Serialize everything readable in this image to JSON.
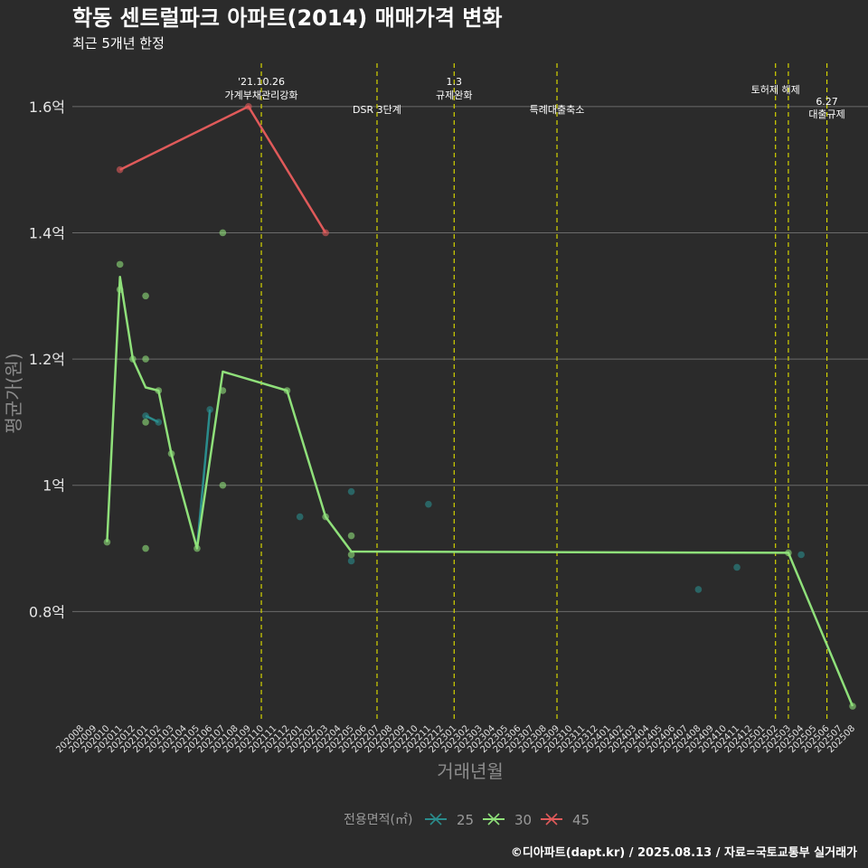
{
  "title": "학동 센트럴파크 아파트(2014) 매매가격 변화",
  "subtitle": "최근 5개년 한정",
  "credit": "©디아파트(dapt.kr) / 2025.08.13 / 자료=국토교통부 실거래가",
  "chart_data": {
    "type": "line",
    "xlabel": "거래년월",
    "ylabel": "평균가(원)",
    "x_categories": [
      "202008",
      "202009",
      "202010",
      "202011",
      "202012",
      "202101",
      "202102",
      "202103",
      "202104",
      "202105",
      "202106",
      "202107",
      "202108",
      "202109",
      "202110",
      "202111",
      "202112",
      "202201",
      "202202",
      "202203",
      "202204",
      "202205",
      "202206",
      "202207",
      "202208",
      "202209",
      "202210",
      "202211",
      "202212",
      "202301",
      "202302",
      "202303",
      "202304",
      "202305",
      "202306",
      "202307",
      "202308",
      "202309",
      "202310",
      "202311",
      "202312",
      "202401",
      "202402",
      "202403",
      "202404",
      "202405",
      "202406",
      "202407",
      "202408",
      "202409",
      "202410",
      "202411",
      "202412",
      "202501",
      "202502",
      "202503",
      "202504",
      "202505",
      "202506",
      "202507",
      "202508"
    ],
    "y_ticks": [
      {
        "value": 0.8,
        "label": "0.8억"
      },
      {
        "value": 1.0,
        "label": "1억"
      },
      {
        "value": 1.2,
        "label": "1.2억"
      },
      {
        "value": 1.4,
        "label": "1.4억"
      },
      {
        "value": 1.6,
        "label": "1.6억"
      }
    ],
    "ylim": [
      0.63,
      1.68
    ],
    "grid": "horizontal",
    "legend_title": "전용면적(㎡)",
    "legend_position": "bottom",
    "series": [
      {
        "name": "25",
        "color": "#2a8c8c",
        "line": [
          [
            "202101",
            1.11
          ],
          [
            "202102",
            1.1
          ]
        ],
        "line2": [
          [
            "202105",
            0.9
          ],
          [
            "202106",
            1.12
          ]
        ],
        "points": [
          [
            "202101",
            1.11
          ],
          [
            "202102",
            1.1
          ],
          [
            "202106",
            1.12
          ],
          [
            "202201",
            0.95
          ],
          [
            "202205",
            0.99
          ],
          [
            "202205",
            0.88
          ],
          [
            "202211",
            0.97
          ],
          [
            "202408",
            0.835
          ],
          [
            "202411",
            0.87
          ],
          [
            "202504",
            0.89
          ]
        ]
      },
      {
        "name": "30",
        "color": "#8fe07a",
        "line": [
          [
            "202010",
            0.91
          ],
          [
            "202011",
            1.33
          ],
          [
            "202012",
            1.2
          ],
          [
            "202101",
            1.155
          ],
          [
            "202102",
            1.15
          ],
          [
            "202103",
            1.05
          ],
          [
            "202105",
            0.9
          ],
          [
            "202107",
            1.18
          ],
          [
            "202112",
            1.15
          ],
          [
            "202203",
            0.95
          ],
          [
            "202205",
            0.895
          ],
          [
            "202503",
            0.893
          ],
          [
            "202508",
            0.65
          ]
        ],
        "points": [
          [
            "202010",
            0.91
          ],
          [
            "202011",
            1.35
          ],
          [
            "202011",
            1.31
          ],
          [
            "202012",
            1.2
          ],
          [
            "202101",
            1.3
          ],
          [
            "202101",
            1.2
          ],
          [
            "202101",
            1.1
          ],
          [
            "202101",
            0.9
          ],
          [
            "202102",
            1.15
          ],
          [
            "202103",
            1.05
          ],
          [
            "202105",
            0.9
          ],
          [
            "202107",
            1.4
          ],
          [
            "202107",
            1.15
          ],
          [
            "202107",
            1.0
          ],
          [
            "202112",
            1.15
          ],
          [
            "202203",
            0.95
          ],
          [
            "202205",
            0.92
          ],
          [
            "202205",
            0.89
          ],
          [
            "202503",
            0.893
          ],
          [
            "202508",
            0.65
          ]
        ]
      },
      {
        "name": "45",
        "color": "#e05a5a",
        "line": [
          [
            "202011",
            1.5
          ],
          [
            "202109",
            1.6
          ],
          [
            "202203",
            1.4
          ]
        ],
        "points": [
          [
            "202011",
            1.5
          ],
          [
            "202109",
            1.6
          ],
          [
            "202203",
            1.4
          ]
        ]
      }
    ],
    "events": [
      {
        "month": "202110",
        "lines": [
          "'21.10.26",
          "가계부채관리강화"
        ],
        "level": 0
      },
      {
        "month": "202207",
        "lines": [
          "DSR 3단계"
        ],
        "level": 1
      },
      {
        "month": "202301",
        "lines": [
          "1.3",
          "규제완화"
        ],
        "level": 0
      },
      {
        "month": "202309",
        "lines": [
          "특례대출축소"
        ],
        "level": 1
      },
      {
        "month": "202502",
        "lines": [
          "토허제 해제"
        ],
        "level": 0
      },
      {
        "month": "202503",
        "lines": [],
        "level": 0
      },
      {
        "month": "202506",
        "lines": [
          "6.27",
          "대출규제"
        ],
        "level": 1
      }
    ]
  }
}
